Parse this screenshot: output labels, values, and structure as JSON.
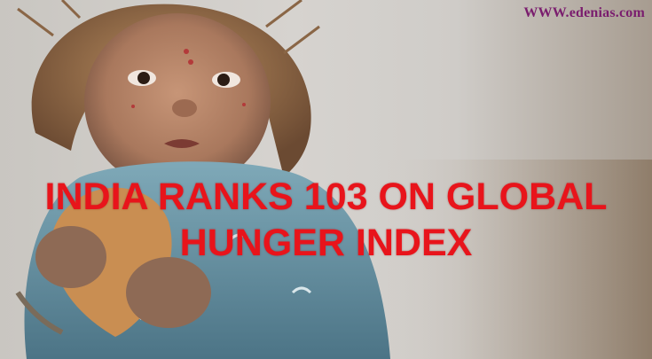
{
  "watermark": "WWW.edenias.com",
  "headline": {
    "line1": "INDIA RANKS 103 ON GLOBAL",
    "line2": "HUNGER INDEX"
  },
  "colors": {
    "headline": "#e8141b",
    "watermark": "#7a1d6e",
    "background": "#d6d3cf",
    "dress": "#5f8fa3",
    "hair": "#a0744a",
    "skin": "#b8876a"
  },
  "image": {
    "subject": "child-photo"
  }
}
